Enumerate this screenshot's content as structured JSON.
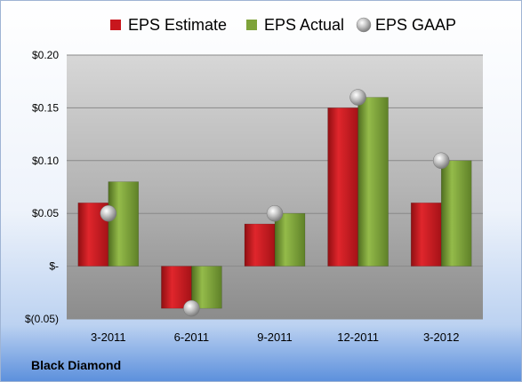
{
  "company": "Black Diamond",
  "colors": {
    "estimate": "#c8161d",
    "actual": "#7ea33a",
    "gaap": "#a9a9a9"
  },
  "chart_data": {
    "type": "bar",
    "categories": [
      "3-2011",
      "6-2011",
      "9-2011",
      "12-2011",
      "3-2012"
    ],
    "series": [
      {
        "name": "EPS Estimate",
        "values": [
          0.06,
          -0.04,
          0.04,
          0.15,
          0.06
        ]
      },
      {
        "name": "EPS Actual",
        "values": [
          0.08,
          -0.04,
          0.05,
          0.16,
          0.1
        ]
      },
      {
        "name": "EPS GAAP",
        "marker": "sphere",
        "values": [
          0.05,
          -0.04,
          0.05,
          0.16,
          0.1
        ]
      }
    ],
    "ylim": [
      -0.05,
      0.2
    ],
    "yticks": [
      -0.05,
      0,
      0.05,
      0.1,
      0.15,
      0.2
    ],
    "ytick_labels": [
      "$(0.05)",
      "$-",
      "$0.05",
      "$0.10",
      "$0.15",
      "$0.20"
    ],
    "grid": true,
    "legend": "top"
  }
}
